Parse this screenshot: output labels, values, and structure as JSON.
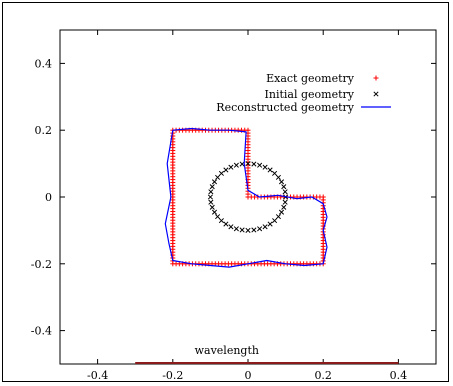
{
  "chart_data": {
    "type": "scatter",
    "title": "",
    "xlabel": "",
    "ylabel": "",
    "xlim": [
      -0.5,
      0.5
    ],
    "ylim": [
      -0.5,
      0.5
    ],
    "xticks": [
      -0.4,
      -0.2,
      0,
      0.2,
      0.4
    ],
    "yticks": [
      -0.4,
      -0.2,
      0,
      0.2,
      0.4
    ],
    "xtick_labels": [
      "-0.4",
      "-0.2",
      "0",
      "0.2",
      "0.4"
    ],
    "ytick_labels": [
      "-0.4",
      "-0.2",
      "0",
      "0.2",
      "0.4"
    ],
    "grid": false,
    "legend_position": "top-right",
    "series": [
      {
        "name": "Exact geometry",
        "type": "scatter",
        "marker": "plus",
        "color": "#ff0000",
        "path": [
          [
            -0.2,
            0.2
          ],
          [
            0.0,
            0.2
          ],
          [
            0.0,
            0.0
          ],
          [
            0.2,
            0.0
          ],
          [
            0.2,
            -0.2
          ],
          [
            -0.2,
            -0.2
          ],
          [
            -0.2,
            0.2
          ]
        ],
        "points_per_unit": 115
      },
      {
        "name": "Initial geometry",
        "type": "scatter",
        "marker": "x",
        "color": "#000000",
        "center": [
          0.0,
          0.0
        ],
        "radius": 0.1,
        "count": 40
      },
      {
        "name": "Reconstructed geometry",
        "type": "line",
        "color": "#0000ff",
        "x": [
          -0.2,
          -0.15,
          -0.1,
          -0.05,
          -0.005,
          -0.01,
          0.0,
          0.03,
          0.08,
          0.13,
          0.17,
          0.2,
          0.21,
          0.2,
          0.21,
          0.2,
          0.15,
          0.1,
          0.05,
          0.0,
          -0.05,
          -0.1,
          -0.15,
          -0.2,
          -0.21,
          -0.22,
          -0.205,
          -0.215,
          -0.2
        ],
        "y": [
          0.2,
          0.205,
          0.2,
          0.2,
          0.195,
          0.1,
          0.02,
          0.0,
          0.005,
          -0.005,
          0.0,
          -0.02,
          -0.06,
          -0.1,
          -0.15,
          -0.2,
          -0.205,
          -0.2,
          -0.19,
          -0.2,
          -0.21,
          -0.205,
          -0.2,
          -0.19,
          -0.14,
          -0.08,
          0.0,
          0.1,
          0.2
        ]
      }
    ],
    "annotation": {
      "text": "wavelength",
      "x": [
        -0.3,
        0.4
      ],
      "y": -0.5,
      "color": "#8b1a1a"
    }
  }
}
